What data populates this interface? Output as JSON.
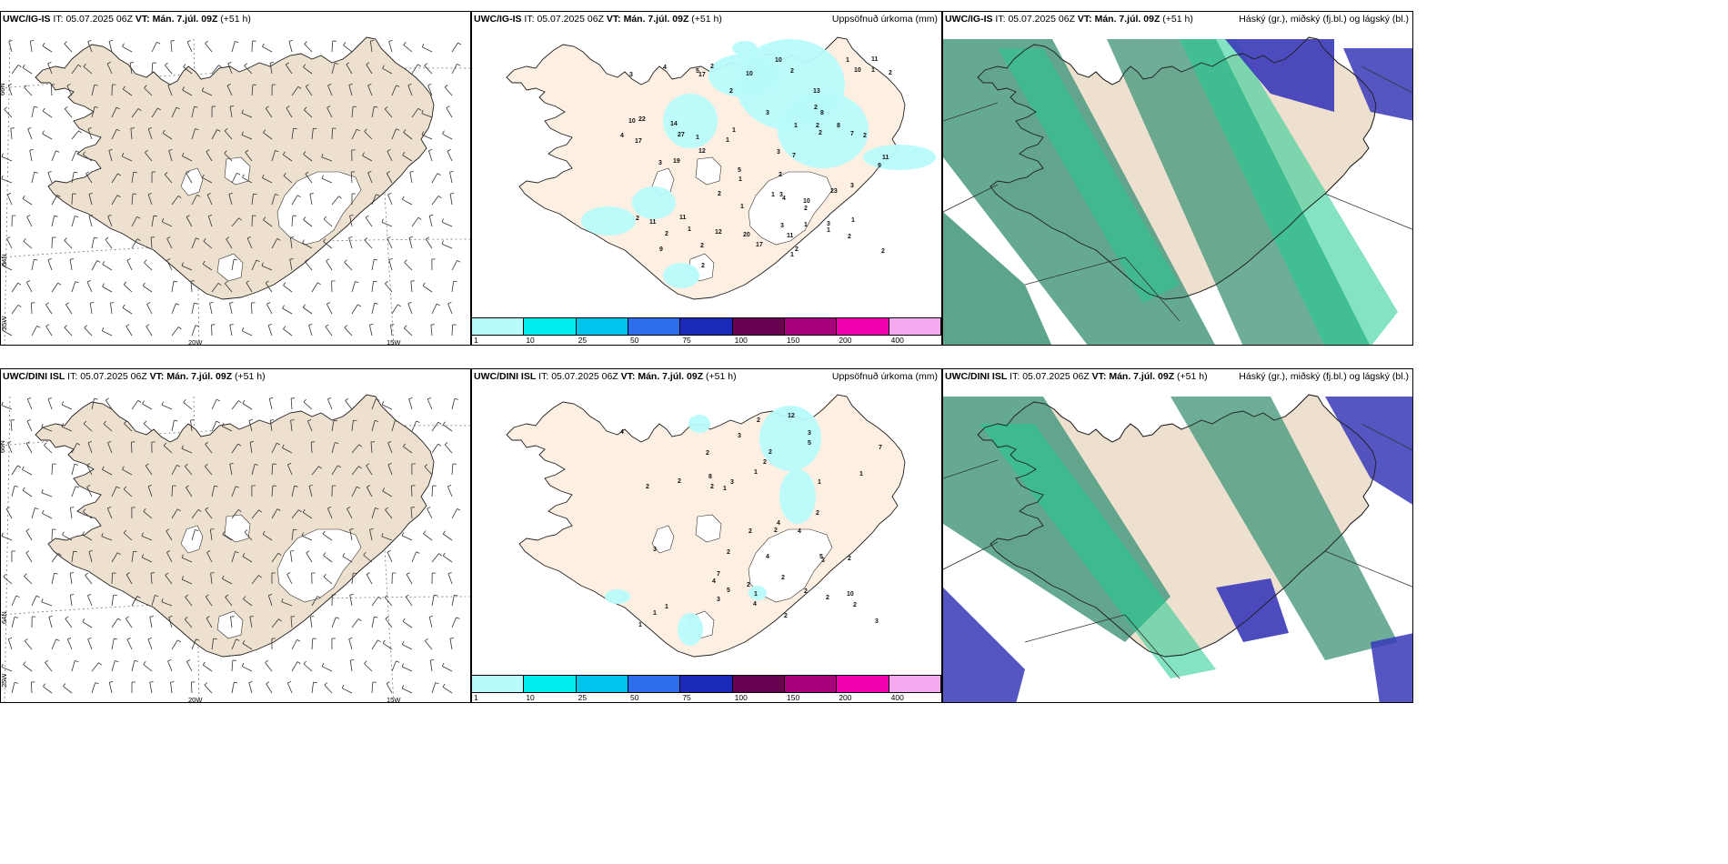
{
  "panels": [
    {
      "id": "p1",
      "model": "UWC/IG-IS",
      "it_label": "IT:",
      "it_value": "05.07.2025 06Z",
      "vt_label": "VT:",
      "vt_value": "Mán. 7.júl. 09Z",
      "lead": "(+51 h)",
      "right": ""
    },
    {
      "id": "p2",
      "model": "UWC/IG-IS",
      "it_label": "IT:",
      "it_value": "05.07.2025 06Z",
      "vt_label": "VT:",
      "vt_value": "Mán. 7.júl. 09Z",
      "lead": "(+51 h)",
      "right": "Uppsöfnuð úrkoma (mm)"
    },
    {
      "id": "p3",
      "model": "UWC/IG-IS",
      "it_label": "IT:",
      "it_value": "05.07.2025 06Z",
      "vt_label": "VT:",
      "vt_value": "Mán. 7.júl. 09Z",
      "lead": "(+51 h)",
      "right": "Háský (gr.), miðský (fj.bl.) og lágský (bl.)"
    },
    {
      "id": "p4",
      "model": "UWC/DINI ISL",
      "it_label": "IT:",
      "it_value": "05.07.2025 06Z",
      "vt_label": "VT:",
      "vt_value": "Mán. 7.júl. 09Z",
      "lead": "(+51 h)",
      "right": ""
    },
    {
      "id": "p5",
      "model": "UWC/DINI ISL",
      "it_label": "IT:",
      "it_value": "05.07.2025 06Z",
      "vt_label": "VT:",
      "vt_value": "Mán. 7.júl. 09Z",
      "lead": "(+51 h)",
      "right": "Uppsöfnuð úrkoma (mm)"
    },
    {
      "id": "p6",
      "model": "UWC/DINI ISL",
      "it_label": "IT:",
      "it_value": "05.07.2025 06Z",
      "vt_label": "VT:",
      "vt_value": "Mán. 7.júl. 09Z",
      "lead": "(+51 h)",
      "right": "Háský (gr.), miðský (fj.bl.) og lágský (bl.)"
    }
  ],
  "grid_labels": {
    "lat66": "66N",
    "lat64": "64N",
    "lon25": "25W",
    "lon20": "20W",
    "lon15": "15W"
  },
  "colorbar": {
    "colors": [
      "#b8fbfb",
      "#00eeee",
      "#00c4ee",
      "#2e6cee",
      "#1a2ab8",
      "#6a0050",
      "#a8007c",
      "#f000b0",
      "#f6aaf0"
    ],
    "labels": [
      "1",
      "10",
      "25",
      "50",
      "75",
      "100",
      "150",
      "200",
      "400"
    ]
  },
  "precip_labels": {
    "p2": [
      "2",
      "17",
      "11",
      "14",
      "8",
      "11",
      "9",
      "12",
      "1",
      "1",
      "11",
      "10",
      "5",
      "3",
      "2",
      "1",
      "17",
      "10",
      "23",
      "7",
      "3",
      "4",
      "2",
      "1",
      "7",
      "8",
      "19",
      "27",
      "17",
      "2",
      "2",
      "11",
      "13",
      "12",
      "2",
      "20",
      "10",
      "22",
      "11",
      "10",
      "10",
      "3",
      "2",
      "1",
      "2",
      "3",
      "1",
      "1",
      "2",
      "1",
      "2",
      "3",
      "1",
      "2",
      "3",
      "2",
      "2",
      "1",
      "2",
      "2",
      "4",
      "1",
      "2",
      "3",
      "5",
      "9",
      "4",
      "3",
      "1",
      "1",
      "2",
      "1",
      "2"
    ],
    "p5": [
      "1",
      "2",
      "4",
      "4",
      "3",
      "12",
      "10",
      "3",
      "2",
      "4",
      "3",
      "2",
      "5",
      "2",
      "2",
      "8",
      "5",
      "3",
      "2",
      "7",
      "4",
      "1",
      "4",
      "4",
      "3",
      "5",
      "3",
      "2",
      "1",
      "2",
      "2",
      "2",
      "2",
      "1",
      "2",
      "2",
      "1",
      "1",
      "2",
      "2",
      "2",
      "7",
      "2",
      "3",
      "2",
      "1",
      "1"
    ]
  },
  "colors": {
    "land": "#ede0cf",
    "land_light": "#fdf0e3",
    "high_cloud": "#4a9a80",
    "mid_cloud": "#1fcc90",
    "low_cloud": "#3838b8"
  }
}
